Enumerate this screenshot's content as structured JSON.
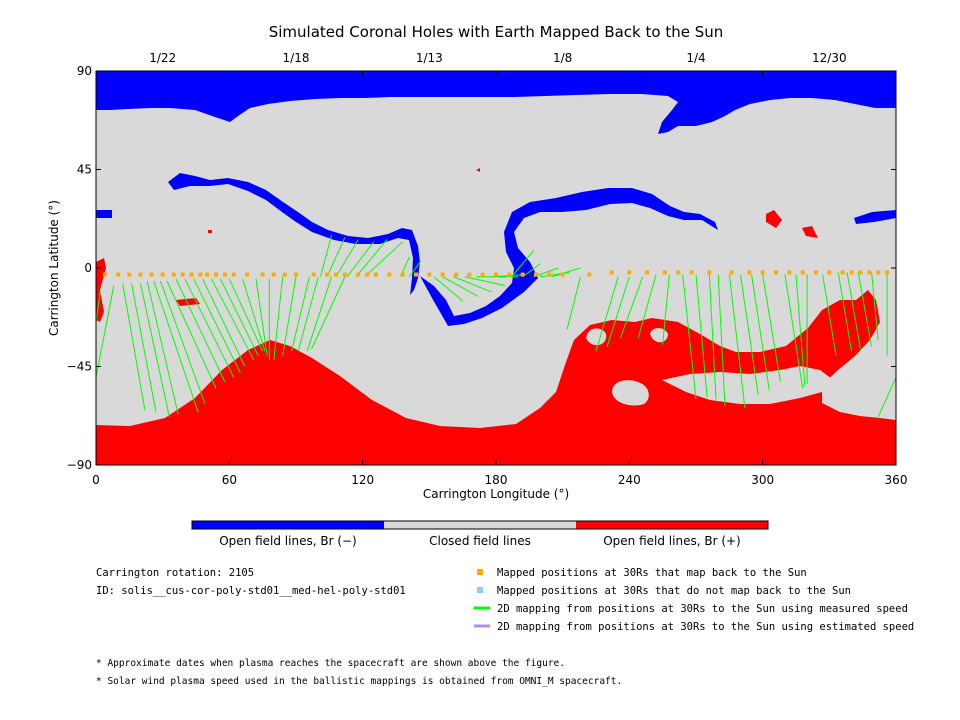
{
  "chart_data": {
    "type": "map",
    "title": "Simulated Coronal Holes with Earth Mapped Back to the Sun",
    "xlabel": "Carrington Longitude (°)",
    "ylabel": "Carrington Latitude (°)",
    "xlim": [
      0,
      360
    ],
    "ylim": [
      -90,
      90
    ],
    "x_ticks": [
      "0",
      "60",
      "120",
      "180",
      "240",
      "300",
      "360"
    ],
    "y_ticks": [
      "90",
      "45",
      "0",
      "−45",
      "−90"
    ],
    "top_dates": [
      {
        "label": "1/22",
        "lon": 30
      },
      {
        "label": "1/18",
        "lon": 90
      },
      {
        "label": "1/13",
        "lon": 150
      },
      {
        "label": "1/8",
        "lon": 210
      },
      {
        "label": "1/4",
        "lon": 270
      },
      {
        "label": "12/30",
        "lon": 330
      }
    ],
    "colors": {
      "open_negative": "#0000ff",
      "closed": "#d9d9d9",
      "open_positive": "#ff0000",
      "mapped_point": "#ffaa00",
      "unmapped_point": "#87cefa",
      "measured_line": "#00ff00",
      "estimated_line": "#bb88ee"
    },
    "colorbar_labels": [
      "Open field lines, Br (−)",
      "Closed field lines",
      "Open field lines, Br (+)"
    ],
    "mapping_lines": [
      [
        2,
        -10,
        0,
        -25
      ],
      [
        8,
        -8,
        0,
        -50
      ],
      [
        12,
        -7,
        22,
        -65
      ],
      [
        16,
        -7,
        27,
        -66
      ],
      [
        20,
        -7,
        33,
        -68
      ],
      [
        23,
        -6,
        37,
        -67
      ],
      [
        26,
        -6,
        46,
        -66
      ],
      [
        29,
        -6,
        49,
        -62
      ],
      [
        32,
        -6,
        54,
        -55
      ],
      [
        36,
        -5,
        58,
        -52
      ],
      [
        40,
        -5,
        62,
        -50
      ],
      [
        44,
        -5,
        65,
        -48
      ],
      [
        48,
        -5,
        67,
        -45
      ],
      [
        52,
        -5,
        71,
        -42
      ],
      [
        56,
        -5,
        73,
        -40
      ],
      [
        60,
        -5,
        75,
        -38
      ],
      [
        66,
        -5,
        76,
        -38
      ],
      [
        72,
        -5,
        77,
        -40
      ],
      [
        78,
        -5,
        78,
        -42
      ],
      [
        84,
        -4,
        80,
        -42
      ],
      [
        90,
        -4,
        84,
        -40
      ],
      [
        96,
        -4,
        88,
        -38
      ],
      [
        100,
        -4,
        91,
        -38
      ],
      [
        106,
        -4,
        95,
        -38
      ],
      [
        112,
        -4,
        97,
        -37
      ],
      [
        101,
        -4,
        106,
        15
      ],
      [
        104,
        -4,
        112,
        14
      ],
      [
        108,
        -4,
        118,
        13
      ],
      [
        113,
        -4,
        125,
        12
      ],
      [
        117,
        -4,
        131,
        13
      ],
      [
        121,
        -4,
        138,
        12
      ],
      [
        137,
        -4,
        141,
        5
      ],
      [
        141,
        -4,
        146,
        3
      ],
      [
        152,
        -4,
        165,
        -15
      ],
      [
        156,
        -4,
        172,
        -13
      ],
      [
        161,
        -4,
        178,
        -11
      ],
      [
        166,
        -4,
        184,
        -8
      ],
      [
        171,
        -4,
        190,
        -4
      ],
      [
        178,
        -4,
        193,
        -3
      ],
      [
        187,
        -4,
        197,
        8
      ],
      [
        192,
        -4,
        200,
        2
      ],
      [
        197,
        -4,
        208,
        0
      ],
      [
        200,
        -4,
        213,
        -2
      ],
      [
        205,
        -4,
        218,
        0
      ],
      [
        218,
        -4,
        212,
        -28
      ],
      [
        235,
        -4,
        225,
        -38
      ],
      [
        240,
        -4,
        230,
        -36
      ],
      [
        246,
        -4,
        236,
        -32
      ],
      [
        252,
        -3,
        244,
        -32
      ],
      [
        258,
        -3,
        255,
        -35
      ],
      [
        264,
        -3,
        270,
        -60
      ],
      [
        270,
        -3,
        275,
        -59
      ],
      [
        276,
        -3,
        279,
        -60
      ],
      [
        280,
        -3,
        283,
        -63
      ],
      [
        285,
        -3,
        292,
        -64
      ],
      [
        290,
        -3,
        298,
        -58
      ],
      [
        295,
        -3,
        303,
        -56
      ],
      [
        300,
        -3,
        308,
        -52
      ],
      [
        310,
        -3,
        318,
        -55
      ],
      [
        315,
        -3,
        319,
        -54
      ],
      [
        320,
        -3,
        320,
        -53
      ],
      [
        327,
        -3,
        333,
        -40
      ],
      [
        334,
        -2,
        340,
        -38
      ],
      [
        338,
        -2,
        344,
        -37
      ],
      [
        343,
        -2,
        349,
        -36
      ],
      [
        349,
        -2,
        352,
        -33
      ],
      [
        356,
        -2,
        356,
        -40
      ],
      [
        360,
        -50,
        352,
        -68
      ]
    ],
    "mapped_positions": [
      [
        4,
        -3
      ],
      [
        10,
        -3
      ],
      [
        15,
        -3
      ],
      [
        20,
        -3
      ],
      [
        25,
        -3
      ],
      [
        30,
        -3
      ],
      [
        35,
        -3
      ],
      [
        39,
        -3
      ],
      [
        43,
        -3
      ],
      [
        47,
        -3
      ],
      [
        50,
        -3
      ],
      [
        54,
        -3
      ],
      [
        58,
        -3
      ],
      [
        62,
        -3
      ],
      [
        68,
        -3
      ],
      [
        75,
        -3
      ],
      [
        80,
        -3
      ],
      [
        85,
        -3
      ],
      [
        90,
        -3
      ],
      [
        98,
        -3
      ],
      [
        104,
        -3
      ],
      [
        108,
        -3
      ],
      [
        112,
        -3
      ],
      [
        118,
        -3
      ],
      [
        122,
        -3
      ],
      [
        126,
        -3
      ],
      [
        132,
        -3
      ],
      [
        138,
        -3
      ],
      [
        144,
        -3
      ],
      [
        150,
        -3
      ],
      [
        156,
        -3
      ],
      [
        162,
        -3
      ],
      [
        168,
        -3
      ],
      [
        174,
        -3
      ],
      [
        180,
        -3
      ],
      [
        186,
        -3
      ],
      [
        192,
        -3
      ],
      [
        198,
        -3
      ],
      [
        204,
        -3
      ],
      [
        210,
        -3
      ],
      [
        222,
        -3
      ],
      [
        232,
        -2
      ],
      [
        240,
        -2
      ],
      [
        248,
        -2
      ],
      [
        256,
        -2
      ],
      [
        262,
        -2
      ],
      [
        268,
        -2
      ],
      [
        276,
        -2
      ],
      [
        286,
        -2
      ],
      [
        294,
        -2
      ],
      [
        300,
        -2
      ],
      [
        306,
        -2
      ],
      [
        312,
        -2
      ],
      [
        318,
        -2
      ],
      [
        324,
        -2
      ],
      [
        330,
        -2
      ],
      [
        336,
        -2
      ],
      [
        340,
        -2
      ],
      [
        344,
        -2
      ],
      [
        348,
        -2
      ],
      [
        352,
        -2
      ],
      [
        356,
        -2
      ]
    ]
  },
  "legend": {
    "rotation_label": "Carrington rotation: 2105",
    "id_label": "ID: solis__cus-cor-poly-std01__med-hel-poly-std01",
    "items": [
      "Mapped positions at 30Rs that map back to the Sun",
      "Mapped positions at 30Rs that do not map back to the Sun",
      "2D mapping from positions at 30Rs to the Sun using measured speed",
      "2D mapping from positions at 30Rs to the Sun using estimated speed"
    ]
  },
  "notes": [
    "* Approximate dates when plasma reaches the spacecraft are shown above the figure.",
    "* Solar wind plasma speed used in the ballistic mappings is obtained from OMNI_M spacecraft."
  ]
}
